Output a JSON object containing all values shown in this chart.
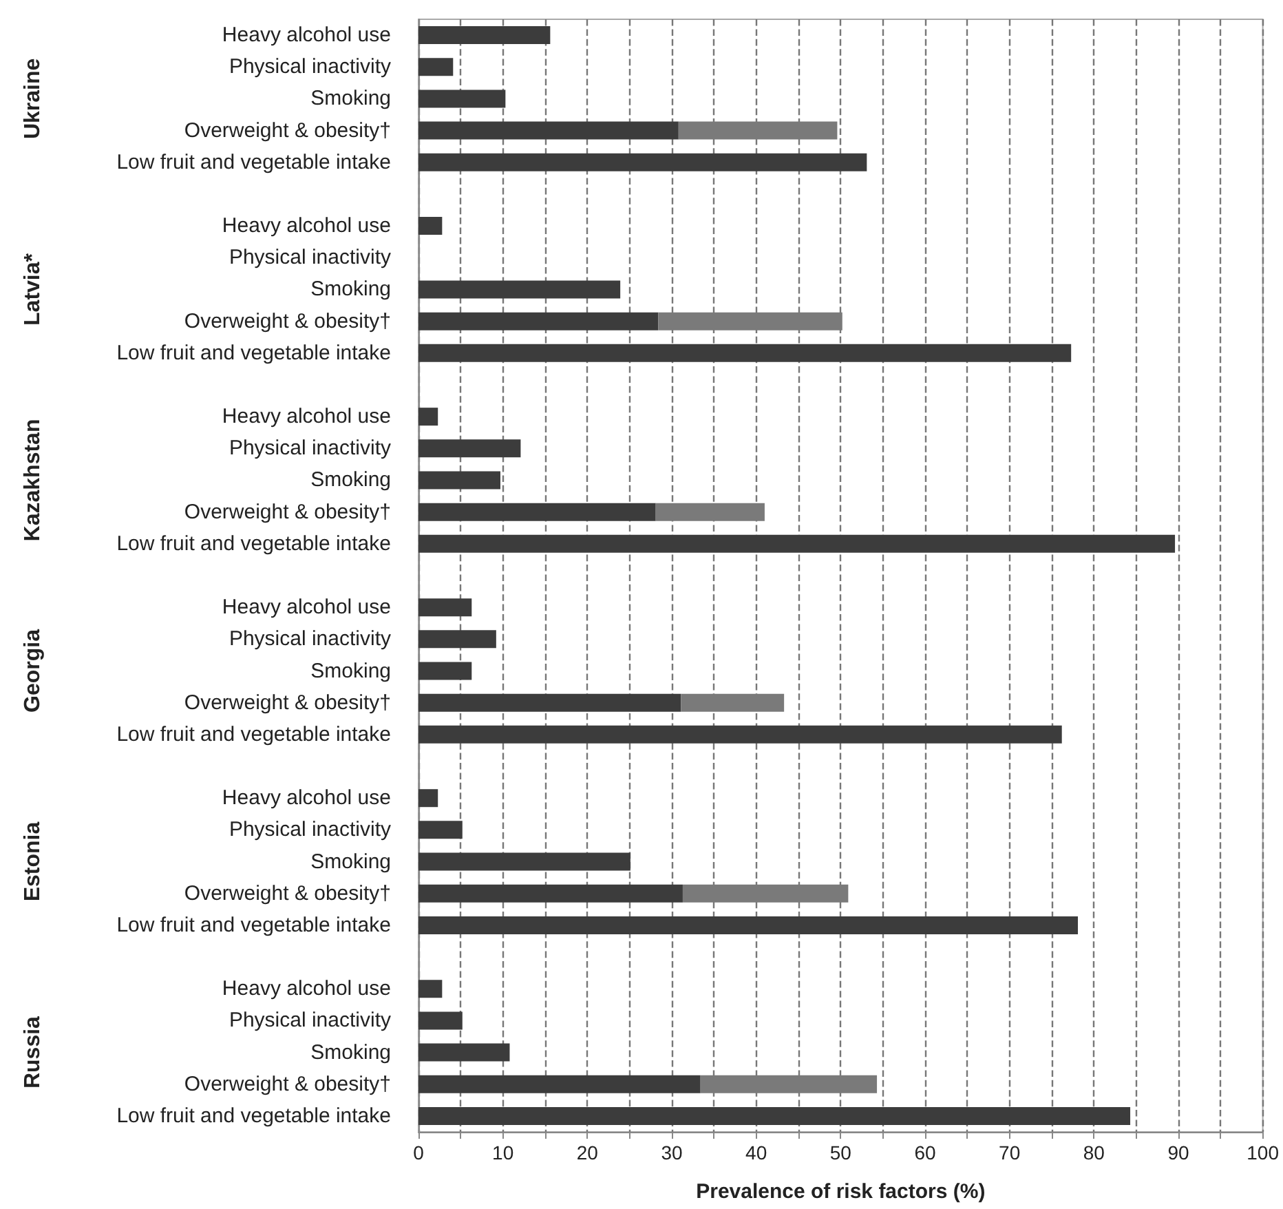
{
  "chart_data": {
    "type": "bar",
    "orientation": "horizontal",
    "stacked": true,
    "grid": "x",
    "xlabel": "Prevalence of risk factors (%)",
    "annotations": [
      "Ukraine",
      "Latvia*",
      "Kazakhstan",
      "Georgia",
      "Estonia",
      "Russia"
    ],
    "categories": [
      "Heavy alcohol use",
      "Physical inactivity",
      "Smoking",
      "Overweight & obesity†",
      "Low fruit and vegetable intake",
      null,
      "Heavy alcohol use",
      "Physical inactivity",
      "Smoking",
      "Overweight & obesity†",
      "Low fruit and vegetable intake",
      null,
      "Heavy alcohol use",
      "Physical inactivity",
      "Smoking",
      "Overweight & obesity†",
      "Low fruit and vegetable intake",
      null,
      "Heavy alcohol use",
      "Physical inactivity",
      "Smoking",
      "Overweight & obesity†",
      "Low fruit and vegetable intake",
      null,
      "Heavy alcohol use",
      "Physical inactivity",
      "Smoking",
      "Overweight & obesity†",
      "Low fruit and vegetable intake",
      null,
      "Heavy alcohol use",
      "Physical inactivity",
      "Smoking",
      "Overweight & obesity†",
      "Low fruit and vegetable intake"
    ],
    "series": [
      {
        "color": "#3c3c3c",
        "values": [
          15.6,
          4.1,
          10.3,
          30.8,
          53.1,
          null,
          2.8,
          null,
          23.9,
          28.4,
          77.3,
          null,
          2.3,
          12.1,
          9.7,
          28.1,
          89.6,
          null,
          6.3,
          9.2,
          6.3,
          31.1,
          76.2,
          null,
          2.3,
          5.2,
          25.1,
          31.3,
          78.1,
          null,
          2.8,
          5.2,
          10.8,
          33.4,
          84.3
        ]
      },
      {
        "color": "#7a7a7a",
        "values": [
          null,
          null,
          null,
          18.8,
          null,
          null,
          null,
          null,
          null,
          21.8,
          null,
          null,
          null,
          null,
          null,
          12.9,
          null,
          null,
          null,
          null,
          null,
          12.2,
          null,
          null,
          null,
          null,
          null,
          19.6,
          null,
          null,
          null,
          null,
          null,
          20.9,
          null
        ]
      }
    ],
    "xlim": [
      0,
      100
    ],
    "xticks": [
      0,
      {
        "value": 5,
        "label": null
      },
      10,
      {
        "value": 15,
        "label": null
      },
      20,
      {
        "value": 25,
        "label": null
      },
      30,
      {
        "value": 35,
        "label": null
      },
      40,
      {
        "value": 45,
        "label": null
      },
      50,
      {
        "value": 55,
        "label": null
      },
      60,
      {
        "value": 65,
        "label": null
      },
      70,
      {
        "value": 75,
        "label": null
      },
      80,
      {
        "value": 85,
        "label": null
      },
      90,
      {
        "value": 95,
        "label": null
      },
      100
    ]
  }
}
